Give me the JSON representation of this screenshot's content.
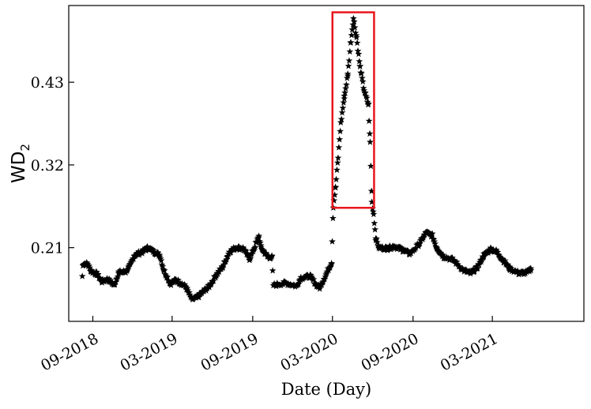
{
  "chart_data": {
    "type": "scatter",
    "title": "",
    "xlabel": "Date (Day)",
    "ylabel": "WD",
    "ylabel_subscript": "2",
    "marker": "star",
    "marker_color": "#000000",
    "highlight_color": "#e8151b",
    "grid": false,
    "xlim": [
      "2018-07-08",
      "2021-09-26"
    ],
    "ylim": [
      0.112,
      0.532
    ],
    "x_ticks": [
      {
        "date": "2018-09-01",
        "label": "09-2018"
      },
      {
        "date": "2019-03-01",
        "label": "03-2019"
      },
      {
        "date": "2019-09-01",
        "label": "09-2019"
      },
      {
        "date": "2020-03-01",
        "label": "03-2020"
      },
      {
        "date": "2020-09-01",
        "label": "09-2020"
      },
      {
        "date": "2021-03-01",
        "label": "03-2021"
      }
    ],
    "y_ticks": [
      {
        "value": 0.21,
        "label": "0.21"
      },
      {
        "value": 0.32,
        "label": "0.32"
      },
      {
        "value": 0.43,
        "label": "0.43"
      }
    ],
    "highlight_box": {
      "x": [
        "2020-03-01",
        "2020-06-04"
      ],
      "y": [
        0.263,
        0.523
      ]
    },
    "anchors": [
      [
        "2018-08-08",
        0.172
      ],
      [
        "2018-08-10",
        0.189
      ],
      [
        "2018-08-20",
        0.188
      ],
      [
        "2018-08-28",
        0.179
      ],
      [
        "2018-09-10",
        0.175
      ],
      [
        "2018-09-22",
        0.165
      ],
      [
        "2018-10-05",
        0.168
      ],
      [
        "2018-10-20",
        0.16
      ],
      [
        "2018-10-30",
        0.177
      ],
      [
        "2018-11-15",
        0.178
      ],
      [
        "2018-11-25",
        0.186
      ],
      [
        "2018-12-05",
        0.2
      ],
      [
        "2018-12-25",
        0.205
      ],
      [
        "2019-01-05",
        0.21
      ],
      [
        "2019-01-20",
        0.204
      ],
      [
        "2019-02-01",
        0.2
      ],
      [
        "2019-02-10",
        0.18
      ],
      [
        "2019-02-25",
        0.162
      ],
      [
        "2019-03-10",
        0.167
      ],
      [
        "2019-03-20",
        0.163
      ],
      [
        "2019-04-01",
        0.158
      ],
      [
        "2019-04-15",
        0.141
      ],
      [
        "2019-04-28",
        0.144
      ],
      [
        "2019-05-08",
        0.15
      ],
      [
        "2019-05-25",
        0.159
      ],
      [
        "2019-06-10",
        0.174
      ],
      [
        "2019-06-25",
        0.185
      ],
      [
        "2019-07-10",
        0.205
      ],
      [
        "2019-07-25",
        0.21
      ],
      [
        "2019-08-10",
        0.209
      ],
      [
        "2019-08-25",
        0.195
      ],
      [
        "2019-09-05",
        0.21
      ],
      [
        "2019-09-15",
        0.225
      ],
      [
        "2019-09-20",
        0.21
      ],
      [
        "2019-10-05",
        0.198
      ],
      [
        "2019-10-15",
        0.197
      ],
      [
        "2019-10-18",
        0.16
      ],
      [
        "2019-11-15",
        0.163
      ],
      [
        "2019-12-10",
        0.159
      ],
      [
        "2019-12-20",
        0.17
      ],
      [
        "2020-01-10",
        0.172
      ],
      [
        "2020-01-25",
        0.16
      ],
      [
        "2020-02-01",
        0.157
      ],
      [
        "2020-02-15",
        0.174
      ],
      [
        "2020-02-28",
        0.19
      ],
      [
        "2020-03-03",
        0.265
      ],
      [
        "2020-03-08",
        0.29
      ],
      [
        "2020-03-14",
        0.33
      ],
      [
        "2020-03-20",
        0.375
      ],
      [
        "2020-03-28",
        0.41
      ],
      [
        "2020-04-05",
        0.44
      ],
      [
        "2020-04-12",
        0.485
      ],
      [
        "2020-04-18",
        0.515
      ],
      [
        "2020-04-25",
        0.49
      ],
      [
        "2020-05-03",
        0.45
      ],
      [
        "2020-05-12",
        0.42
      ],
      [
        "2020-05-22",
        0.4
      ],
      [
        "2020-05-26",
        0.35
      ],
      [
        "2020-05-30",
        0.27
      ],
      [
        "2020-06-03",
        0.255
      ],
      [
        "2020-06-08",
        0.222
      ],
      [
        "2020-06-15",
        0.21
      ],
      [
        "2020-07-05",
        0.209
      ],
      [
        "2020-07-20",
        0.212
      ],
      [
        "2020-08-05",
        0.208
      ],
      [
        "2020-08-25",
        0.202
      ],
      [
        "2020-09-15",
        0.215
      ],
      [
        "2020-10-01",
        0.23
      ],
      [
        "2020-10-15",
        0.226
      ],
      [
        "2020-10-25",
        0.21
      ],
      [
        "2020-11-10",
        0.198
      ],
      [
        "2020-12-01",
        0.194
      ],
      [
        "2020-12-25",
        0.18
      ],
      [
        "2021-01-10",
        0.176
      ],
      [
        "2021-01-25",
        0.183
      ],
      [
        "2021-02-10",
        0.2
      ],
      [
        "2021-02-25",
        0.208
      ],
      [
        "2021-03-10",
        0.205
      ],
      [
        "2021-03-25",
        0.194
      ],
      [
        "2021-04-10",
        0.182
      ],
      [
        "2021-05-01",
        0.176
      ],
      [
        "2021-05-20",
        0.177
      ],
      [
        "2021-05-28",
        0.182
      ]
    ]
  }
}
